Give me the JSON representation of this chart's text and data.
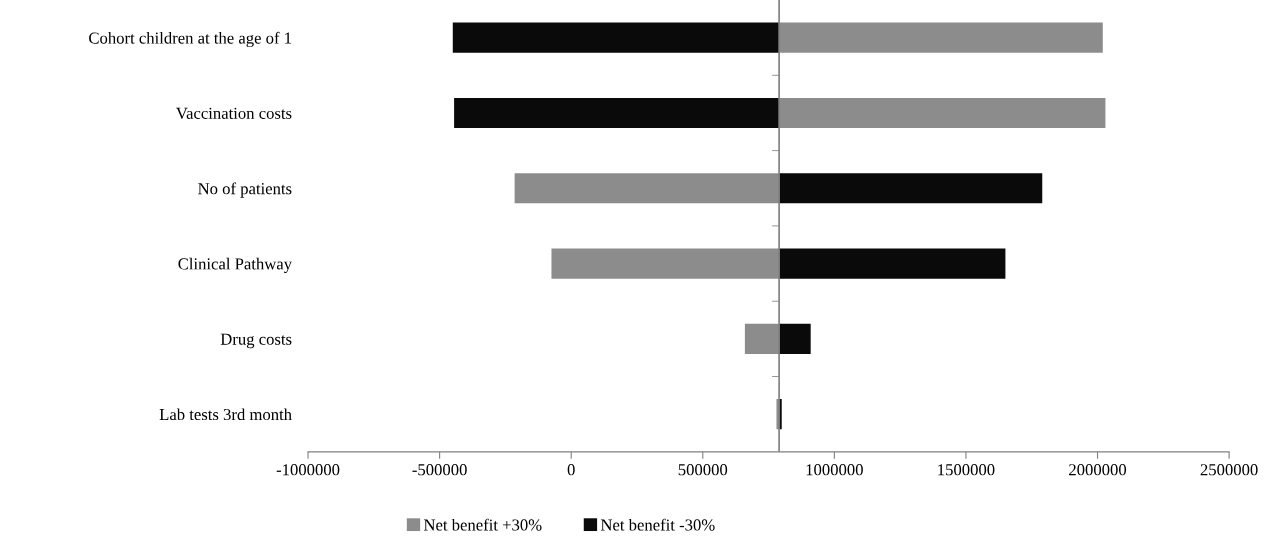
{
  "chart_data": {
    "type": "bar",
    "orientation": "horizontal",
    "categories": [
      "Cohort children at the age of 1",
      "Vaccination costs",
      "No of patients",
      "Clinical Pathway",
      "Drug costs",
      "Lab tests 3rd month"
    ],
    "series": [
      {
        "name": "Net benefit +30%",
        "color": "#8c8c8c",
        "base": [
          790000,
          790000,
          790000,
          790000,
          790000,
          790000
        ],
        "values": [
          1230000,
          1240000,
          -1005000,
          -865000,
          -130000,
          -10000
        ]
      },
      {
        "name": "Net benefit -30%",
        "color": "#0a0a0a",
        "base": [
          790000,
          790000,
          790000,
          790000,
          790000,
          790000
        ],
        "values": [
          -1240000,
          -1235000,
          1000000,
          860000,
          120000,
          10000
        ]
      }
    ],
    "ref_lines": [
      {
        "axis": "x",
        "value": 790000,
        "color": "#808080"
      }
    ],
    "xlim": [
      -1000000,
      2500000
    ],
    "xticks": [
      -1000000,
      -500000,
      0,
      500000,
      1000000,
      1500000,
      2000000,
      2500000
    ],
    "grid": false,
    "legend": "bottom"
  }
}
